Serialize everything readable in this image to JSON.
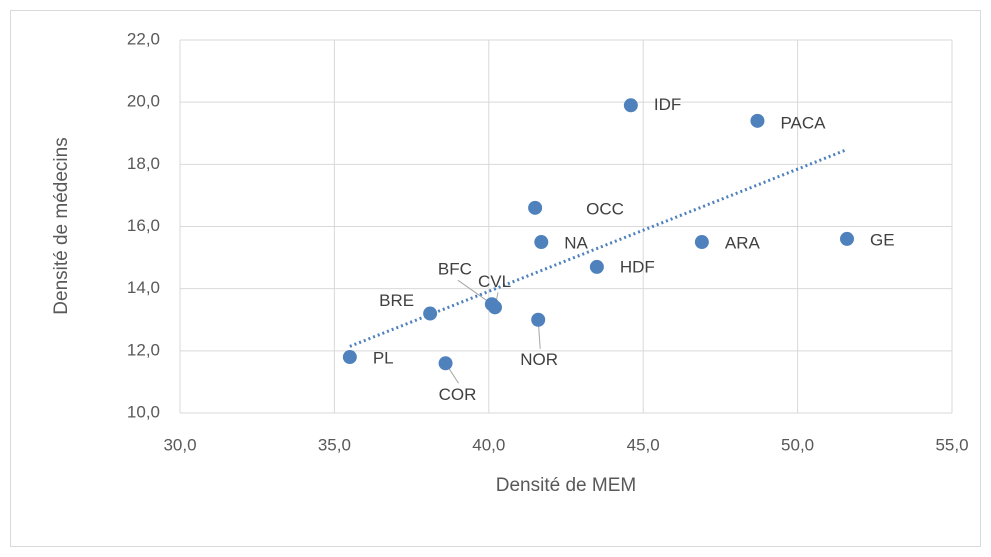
{
  "chart_data": {
    "type": "scatter",
    "x_label": "Densité de MEM",
    "y_label": "Densité de médecins",
    "labels": [
      "IDF",
      "PACA",
      "OCC",
      "NA",
      "ARA",
      "GE",
      "HDF",
      "BFC",
      "CVL",
      "BRE",
      "NOR",
      "PL",
      "COR"
    ],
    "x": [
      44.6,
      48.7,
      41.5,
      41.7,
      46.9,
      51.6,
      43.5,
      40.1,
      40.2,
      38.1,
      41.6,
      35.5,
      38.6
    ],
    "y": [
      19.9,
      19.4,
      16.6,
      15.5,
      15.5,
      15.6,
      14.7,
      13.5,
      13.4,
      13.2,
      13.0,
      11.8,
      11.6
    ],
    "color": "#4f81bd",
    "trendline": true,
    "grid": true,
    "xlim": [
      30,
      55
    ],
    "xticks": [
      {
        "value": 30,
        "label": "30,0"
      },
      {
        "value": 35,
        "label": "35,0"
      },
      {
        "value": 40,
        "label": "40,0"
      },
      {
        "value": 45,
        "label": "45,0"
      },
      {
        "value": 50,
        "label": "50,0"
      },
      {
        "value": 55,
        "label": "55,0"
      }
    ],
    "ylim": [
      10,
      22
    ],
    "yticks": [
      {
        "value": 10,
        "label": "10,0"
      },
      {
        "value": 12,
        "label": "12,0"
      },
      {
        "value": 14,
        "label": "14,0"
      },
      {
        "value": 16,
        "label": "16,0"
      },
      {
        "value": 18,
        "label": "18,0"
      },
      {
        "value": 20,
        "label": "20,0"
      },
      {
        "value": 22,
        "label": "22,0"
      }
    ]
  }
}
